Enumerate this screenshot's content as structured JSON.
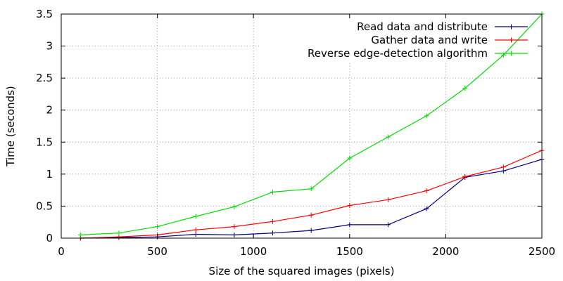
{
  "chart_data": {
    "type": "line",
    "title": "",
    "xlabel": "Size of the squared images (pixels)",
    "ylabel": "Time (seconds)",
    "xlim": [
      0,
      2500
    ],
    "ylim": [
      0,
      3.5
    ],
    "xticks": [
      0,
      500,
      1000,
      1500,
      2000,
      2500
    ],
    "xtick_labels": [
      "0",
      "500",
      "1000",
      "1500",
      "2000",
      "2500"
    ],
    "yticks": [
      0,
      0.5,
      1,
      1.5,
      2,
      2.5,
      3,
      3.5
    ],
    "ytick_labels": [
      "0",
      "0.5",
      "1",
      "1.5",
      "2",
      "2.5",
      "3",
      "3.5"
    ],
    "grid": true,
    "legend_position": "top-right",
    "x": [
      100,
      300,
      500,
      700,
      900,
      1100,
      1300,
      1500,
      1700,
      1900,
      2100,
      2300,
      2500
    ],
    "series": [
      {
        "name": "Read data and distribute",
        "color": "#000080",
        "values": [
          0.0,
          0.01,
          0.02,
          0.06,
          0.05,
          0.08,
          0.12,
          0.21,
          0.21,
          0.46,
          0.95,
          1.05,
          1.23
        ]
      },
      {
        "name": "Gather data and write",
        "color": "#ff0000",
        "values": [
          0.0,
          0.02,
          0.05,
          0.13,
          0.18,
          0.26,
          0.36,
          0.51,
          0.6,
          0.74,
          0.96,
          1.11,
          1.37
        ]
      },
      {
        "name": "Reverse edge-detection algorithm",
        "color": "#00dd00",
        "values": [
          0.05,
          0.08,
          0.18,
          0.34,
          0.49,
          0.72,
          0.77,
          1.25,
          1.58,
          1.91,
          2.34,
          2.86,
          3.5
        ]
      }
    ]
  }
}
